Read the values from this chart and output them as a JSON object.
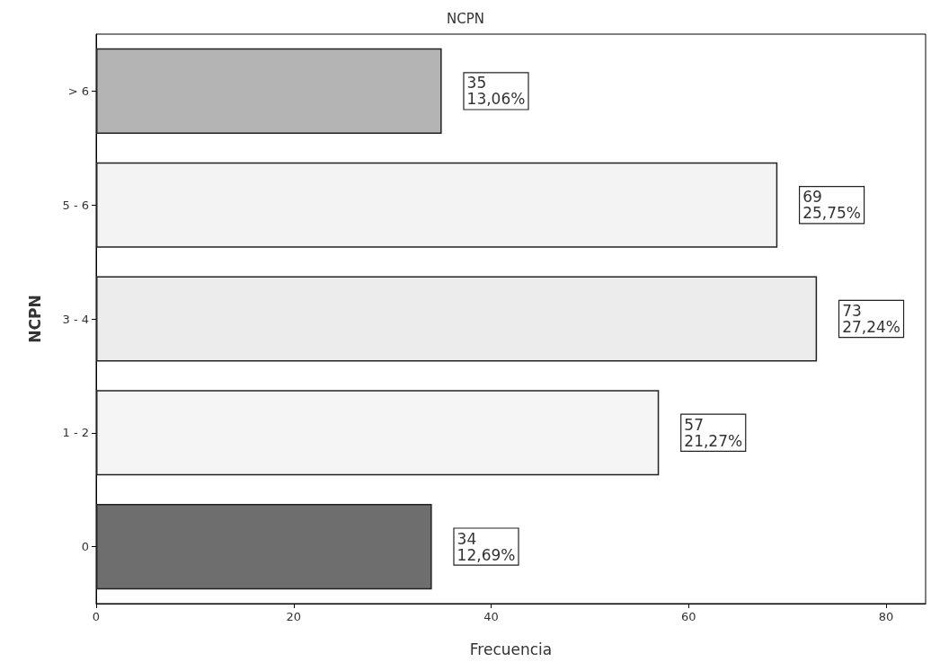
{
  "chart_data": {
    "type": "bar",
    "orientation": "horizontal",
    "title": "NCPN",
    "xlabel": "Frecuencia",
    "ylabel": "NCPN",
    "categories": [
      "> 6",
      "5 - 6",
      "3 - 4",
      "1 - 2",
      "0"
    ],
    "values": [
      35,
      69,
      73,
      57,
      34
    ],
    "colors": [
      "#b4b4b4",
      "#f3f3f3",
      "#ececec",
      "#f5f5f5",
      "#6e6e6e"
    ],
    "value_labels": [
      "35\n13,06%",
      "69\n25,75%",
      "73\n27,24%",
      "57\n21,27%",
      "34\n12,69%"
    ],
    "xlim": [
      0,
      84
    ],
    "xticks": [
      0,
      20,
      40,
      60,
      80
    ],
    "grid": false
  }
}
